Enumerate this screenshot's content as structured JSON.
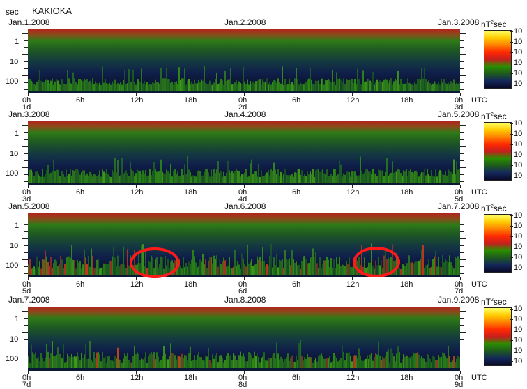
{
  "header": {
    "unit": "sec",
    "station": "KAKIOKA"
  },
  "axes": {
    "y_tick_labels": [
      "1",
      "10",
      "100"
    ],
    "x_tick_labels": [
      "0h",
      "6h",
      "12h",
      "18h",
      "0h",
      "6h",
      "12h",
      "18h",
      "0h"
    ],
    "timezone": "UTC",
    "power_unit": "nT",
    "power_exp": "2",
    "power_sec": "sec",
    "colorbar_labels": [
      "10",
      "10",
      "10",
      "10",
      "10",
      "10"
    ]
  },
  "panels": [
    {
      "dates": [
        "Jan.1.2008",
        "Jan.2.2008",
        "Jan.3.2008"
      ],
      "days": [
        "1d",
        "2d",
        "3d"
      ]
    },
    {
      "dates": [
        "Jan.3.2008",
        "Jan.4.2008",
        "Jan.5.2008"
      ],
      "days": [
        "3d",
        "4d",
        "5d"
      ]
    },
    {
      "dates": [
        "Jan.5.2008",
        "Jan.6.2008",
        "Jan.7.2008"
      ],
      "days": [
        "5d",
        "6d",
        "7d"
      ]
    },
    {
      "dates": [
        "Jan.7.2008",
        "Jan.8.2008",
        "Jan.9.2008"
      ],
      "days": [
        "7d",
        "8d",
        "9d"
      ]
    }
  ],
  "colors": {
    "colorbar": [
      "#ffff66",
      "#ffcc00",
      "#ff8000",
      "#ff2a00",
      "#c81e1e",
      "#2a8f00",
      "#1e5a1e",
      "#14285a",
      "#0a0a28"
    ],
    "highlight": "#ff1a1a"
  },
  "chart_data": {
    "type": "heatmap",
    "title": "KAKIOKA",
    "ylabel": "sec",
    "xlabel": "UTC",
    "y_scale": "log",
    "ylim": [
      0.3,
      200
    ],
    "x_range": [
      "Jan.1.2008 0h",
      "Jan.9.2008 0h"
    ],
    "colorbar_unit": "nT^2 sec",
    "annotations": [
      {
        "shape": "ellipse",
        "panel": 3,
        "time": "Jan.6.2008 ~13h-14h"
      },
      {
        "shape": "ellipse",
        "panel": 3,
        "time": "Jan.6.2008 ~14h-16h"
      }
    ]
  }
}
